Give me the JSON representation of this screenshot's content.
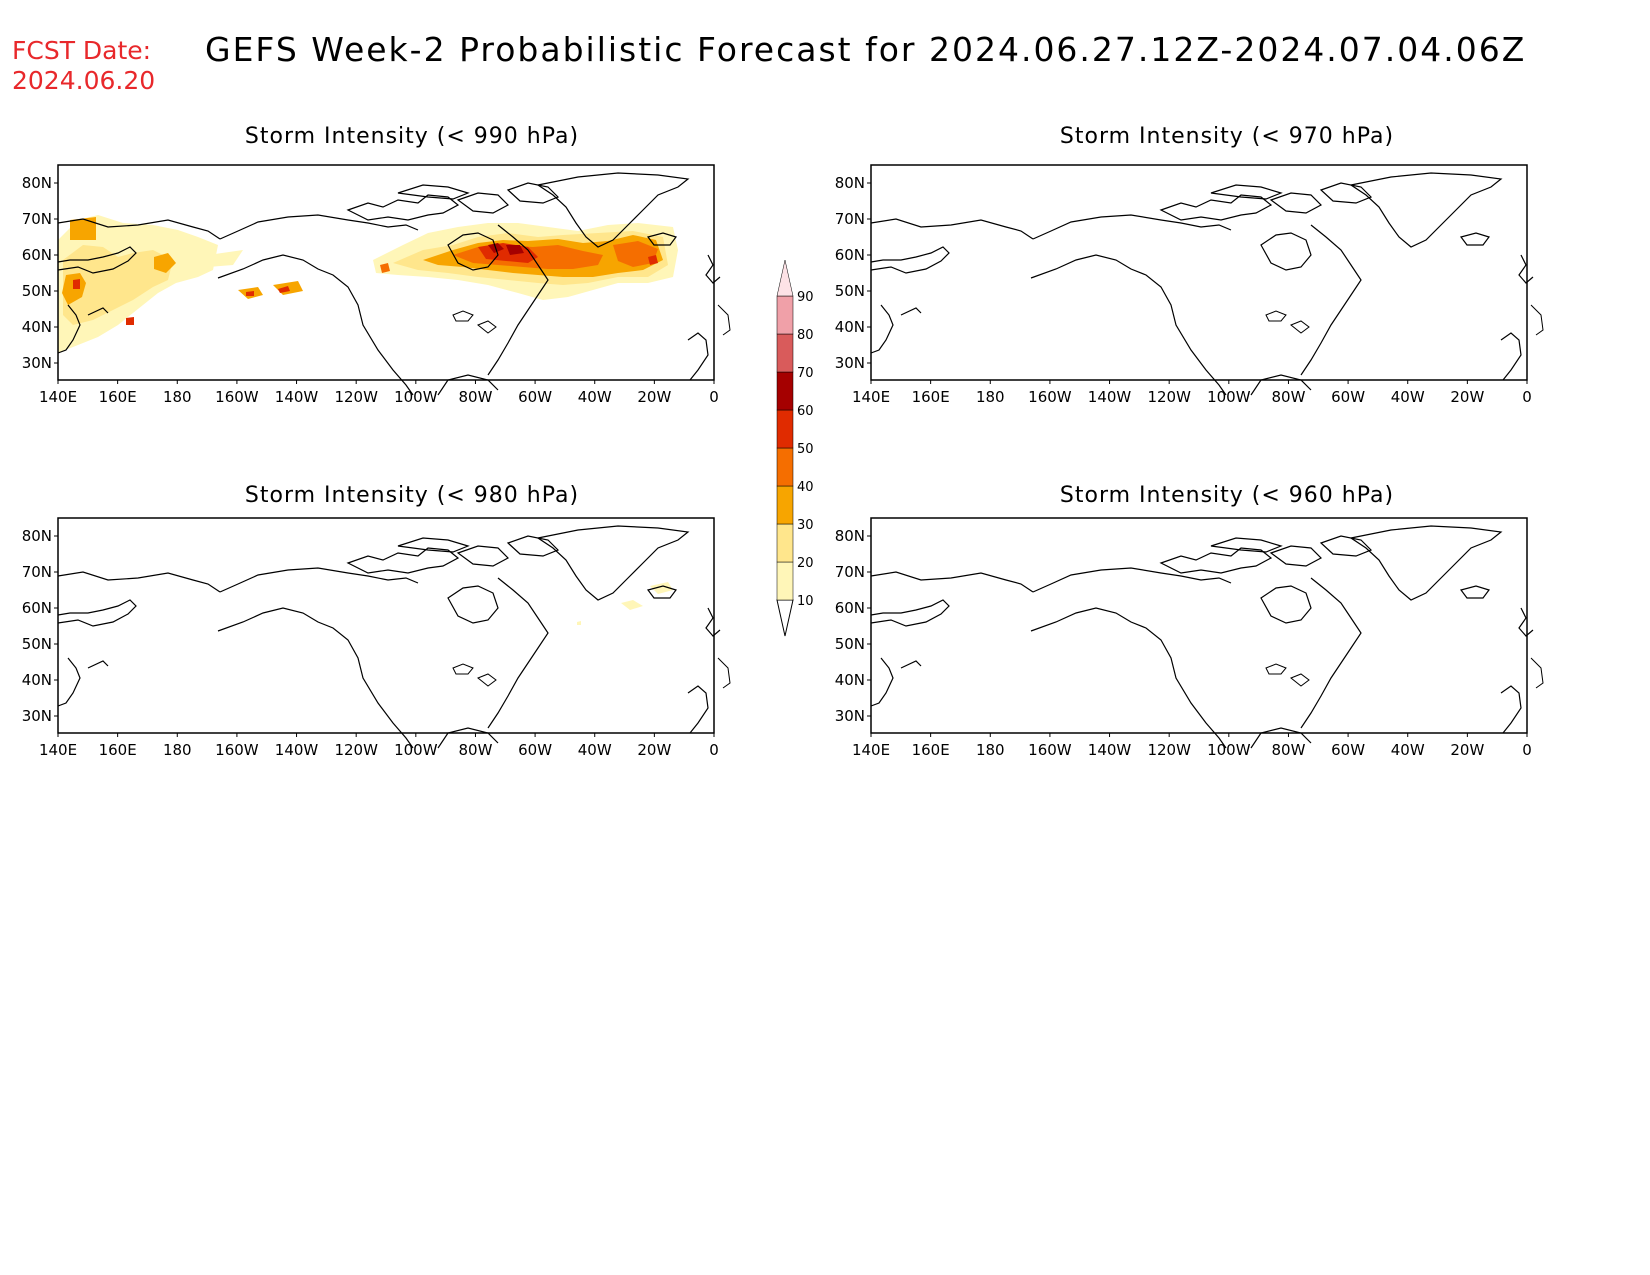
{
  "header": {
    "fcst_label": "FCST Date:",
    "fcst_date": "2024.06.20",
    "title": "GEFS Week-2 Probabilistic Forecast for 2024.06.27.12Z-2024.07.04.06Z"
  },
  "axes": {
    "lat_labels": [
      "80N",
      "70N",
      "60N",
      "50N",
      "40N",
      "30N"
    ],
    "lon_labels": [
      "140E",
      "160E",
      "180",
      "160W",
      "140W",
      "120W",
      "100W",
      "80W",
      "60W",
      "40W",
      "20W",
      "0"
    ]
  },
  "panels": [
    {
      "id": "p990",
      "title": "Storm Intensity (< 990 hPa)"
    },
    {
      "id": "p970",
      "title": "Storm Intensity (< 970 hPa)"
    },
    {
      "id": "p980",
      "title": "Storm Intensity (< 980 hPa)"
    },
    {
      "id": "p960",
      "title": "Storm Intensity (< 960 hPa)"
    }
  ],
  "colorbar": {
    "levels": [
      "10",
      "20",
      "30",
      "40",
      "50",
      "60",
      "70",
      "80",
      "90"
    ],
    "colors": [
      "#fff6b8",
      "#ffe68c",
      "#f7a500",
      "#f56e00",
      "#e02b00",
      "#a50000",
      "#d95b5b",
      "#f0a0a8",
      "#fde2e6"
    ]
  }
}
